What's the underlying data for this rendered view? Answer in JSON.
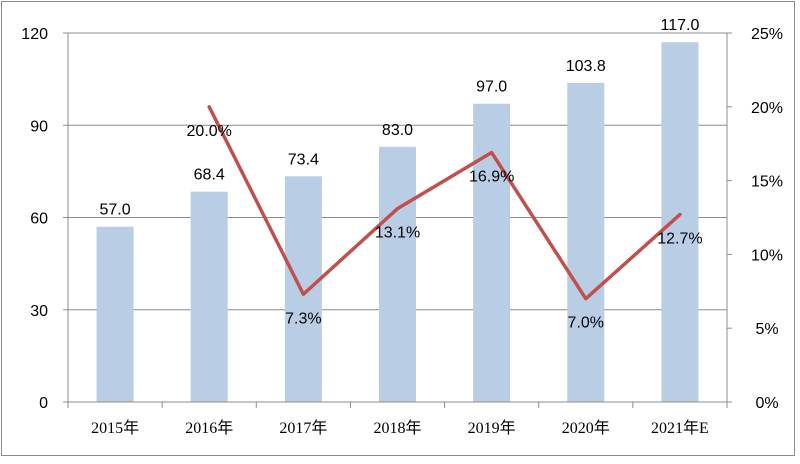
{
  "chart_data": {
    "type": "bar",
    "categories": [
      "2015年",
      "2016年",
      "2017年",
      "2018年",
      "2019年",
      "2020年",
      "2021年E"
    ],
    "series": [
      {
        "name": "bar",
        "kind": "bar",
        "axis": "left",
        "values": [
          57.0,
          68.4,
          73.4,
          83.0,
          97.0,
          103.8,
          117.0
        ],
        "labels": [
          "57.0",
          "68.4",
          "73.4",
          "83.0",
          "97.0",
          "103.8",
          "117.0"
        ]
      },
      {
        "name": "growth",
        "kind": "line",
        "axis": "right",
        "values": [
          null,
          20.0,
          7.3,
          13.1,
          16.9,
          7.0,
          12.7
        ],
        "labels": [
          "",
          "20.0%",
          "7.3%",
          "13.1%",
          "16.9%",
          "7.0%",
          "12.7%"
        ]
      }
    ],
    "ylim": [
      0,
      120
    ],
    "yticks": [
      "0",
      "30",
      "60",
      "90",
      "120"
    ],
    "ylim_right": [
      0,
      25
    ],
    "yticks_right": [
      "0%",
      "5%",
      "10%",
      "15%",
      "20%",
      "25%"
    ],
    "grid": true,
    "colors": {
      "bar": "#b9cde5",
      "line": "#c0504d",
      "grid": "#8c8c8c",
      "axis": "#8c8c8c"
    }
  }
}
